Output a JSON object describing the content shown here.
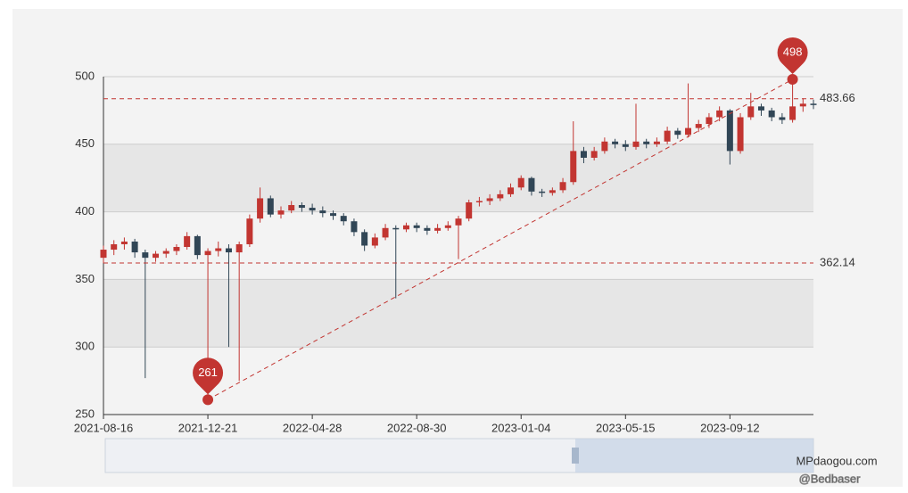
{
  "chart_data": {
    "type": "candlestick",
    "categories": [
      "2021-08-16",
      null,
      null,
      null,
      null,
      null,
      null,
      null,
      null,
      null,
      "2021-12-21",
      null,
      null,
      null,
      null,
      null,
      null,
      null,
      null,
      null,
      "2022-04-28",
      null,
      null,
      null,
      null,
      null,
      null,
      null,
      null,
      null,
      "2022-08-30",
      null,
      null,
      null,
      null,
      null,
      null,
      null,
      null,
      null,
      "2023-01-04",
      null,
      null,
      null,
      null,
      null,
      null,
      null,
      null,
      null,
      "2023-05-15",
      null,
      null,
      null,
      null,
      null,
      null,
      null,
      null,
      null,
      "2023-09-12",
      null,
      null,
      null,
      null,
      null,
      null,
      null,
      null
    ],
    "candles": [
      [
        366,
        372,
        362,
        375
      ],
      [
        372,
        376,
        368,
        379
      ],
      [
        376,
        378,
        372,
        381
      ],
      [
        378,
        370,
        366,
        380
      ],
      [
        370,
        366,
        277,
        372
      ],
      [
        366,
        369,
        363,
        371
      ],
      [
        369,
        371,
        366,
        373
      ],
      [
        371,
        374,
        368,
        376
      ],
      [
        374,
        382,
        372,
        385
      ],
      [
        382,
        368,
        365,
        383
      ],
      [
        368,
        371,
        261,
        373
      ],
      [
        371,
        373,
        367,
        378
      ],
      [
        373,
        370,
        300,
        376
      ],
      [
        370,
        376,
        275,
        378
      ],
      [
        376,
        395,
        374,
        398
      ],
      [
        395,
        410,
        392,
        418
      ],
      [
        410,
        398,
        396,
        412
      ],
      [
        398,
        401,
        395,
        404
      ],
      [
        401,
        405,
        399,
        408
      ],
      [
        405,
        403,
        400,
        407
      ],
      [
        403,
        401,
        398,
        406
      ],
      [
        401,
        399,
        396,
        404
      ],
      [
        399,
        397,
        394,
        401
      ],
      [
        397,
        393,
        390,
        399
      ],
      [
        393,
        385,
        382,
        395
      ],
      [
        385,
        375,
        371,
        387
      ],
      [
        375,
        381,
        373,
        384
      ],
      [
        381,
        388,
        379,
        391
      ],
      [
        388,
        387,
        336,
        390
      ],
      [
        387,
        390,
        385,
        392
      ],
      [
        390,
        388,
        385,
        392
      ],
      [
        388,
        386,
        383,
        390
      ],
      [
        386,
        388,
        384,
        391
      ],
      [
        388,
        390,
        386,
        393
      ],
      [
        390,
        395,
        365,
        397
      ],
      [
        395,
        407,
        393,
        409
      ],
      [
        407,
        408,
        404,
        411
      ],
      [
        408,
        410,
        405,
        413
      ],
      [
        410,
        413,
        408,
        416
      ],
      [
        413,
        418,
        411,
        421
      ],
      [
        418,
        425,
        416,
        427
      ],
      [
        425,
        415,
        412,
        426
      ],
      [
        415,
        414,
        411,
        417
      ],
      [
        414,
        416,
        412,
        418
      ],
      [
        416,
        422,
        414,
        425
      ],
      [
        422,
        445,
        420,
        467
      ],
      [
        445,
        440,
        436,
        448
      ],
      [
        440,
        445,
        438,
        448
      ],
      [
        445,
        452,
        443,
        455
      ],
      [
        452,
        450,
        447,
        454
      ],
      [
        450,
        448,
        445,
        453
      ],
      [
        448,
        452,
        446,
        480
      ],
      [
        452,
        450,
        447,
        454
      ],
      [
        450,
        452,
        448,
        455
      ],
      [
        452,
        460,
        450,
        463
      ],
      [
        460,
        457,
        454,
        462
      ],
      [
        457,
        462,
        455,
        495
      ],
      [
        462,
        465,
        459,
        468
      ],
      [
        465,
        470,
        462,
        473
      ],
      [
        470,
        475,
        467,
        478
      ],
      [
        475,
        445,
        435,
        476
      ],
      [
        445,
        470,
        443,
        473
      ],
      [
        470,
        478,
        468,
        488
      ],
      [
        478,
        475,
        471,
        480
      ],
      [
        475,
        470,
        467,
        477
      ],
      [
        470,
        468,
        465,
        473
      ],
      [
        468,
        478,
        466,
        498
      ],
      [
        478,
        480,
        474,
        484
      ],
      [
        480,
        479,
        476,
        483
      ]
    ],
    "up_color": "#c23531",
    "down_color": "#314656",
    "ylim": [
      250,
      500
    ],
    "yticks": [
      250,
      300,
      350,
      400,
      450,
      500
    ],
    "split_area": true,
    "mark_points": [
      {
        "type": "max",
        "value": 498
      },
      {
        "type": "min",
        "value": 261
      }
    ],
    "mark_lines": [
      483.66,
      362.14
    ],
    "watermark": [
      "MPdaogou.com",
      "@Bedbaser"
    ]
  }
}
